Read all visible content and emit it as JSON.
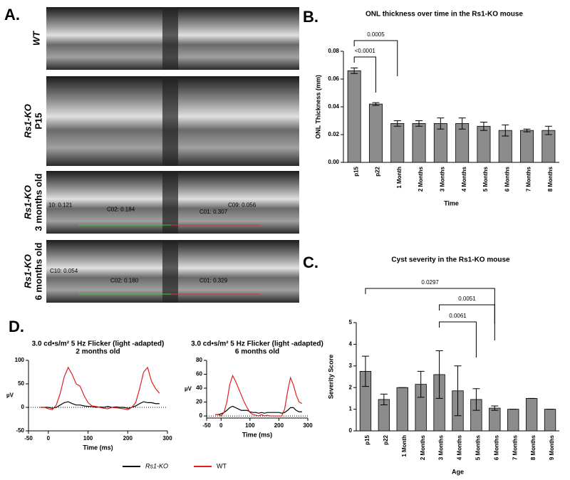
{
  "panel_a": {
    "panel": "A.",
    "rows": [
      {
        "label": "WT"
      },
      {
        "label": "Rs1-KO",
        "sublabel": "P15"
      },
      {
        "label": "Rs1-KO",
        "sublabel": "3 months old",
        "annotations": [
          "10: 0.121",
          "C02: 0.184",
          "C01: 0.307",
          "C09: 0.056"
        ]
      },
      {
        "label": "Rs1-KO",
        "sublabel": "6 months old",
        "annotations": [
          "C10: 0.054",
          "C02: 0.180",
          "C01: 0.329"
        ]
      }
    ]
  },
  "chart_data": [
    {
      "type": "bar",
      "panel": "B.",
      "title": "ONL thickness over time in the Rs1-KO mouse",
      "x_label": "Time",
      "y_label": "ONL Thickness (mm)",
      "categories": [
        "p15",
        "p22",
        "1 Month",
        "2 Months",
        "3 Months",
        "4 Months",
        "5 Months",
        "6 Months",
        "7 Months",
        "8 Months"
      ],
      "values": [
        0.066,
        0.042,
        0.028,
        0.028,
        0.028,
        0.028,
        0.026,
        0.023,
        0.023,
        0.023
      ],
      "errors": [
        0.002,
        0.001,
        0.002,
        0.002,
        0.004,
        0.004,
        0.003,
        0.004,
        0.001,
        0.003
      ],
      "color": "#8c8c8c",
      "ylim": [
        0,
        0.08
      ],
      "yticks": [
        {
          "value": 0,
          "label": "0.00"
        },
        {
          "value": 0.02,
          "label": "0.02"
        },
        {
          "value": 0.04,
          "label": "0.04"
        },
        {
          "value": 0.06,
          "label": "0.06"
        },
        {
          "value": 0.08,
          "label": "0.08"
        }
      ],
      "annotations": [
        "<0.0001",
        "0.0005"
      ]
    },
    {
      "type": "bar",
      "panel": "C.",
      "title": "Cyst severity in the Rs1-KO mouse",
      "x_label": "Age",
      "y_label": "Severity Score",
      "categories": [
        "p15",
        "p22",
        "1 Month",
        "2 Months",
        "3 Months",
        "4 Months",
        "5 Months",
        "6 Months",
        "7 Months",
        "8 Months",
        "9 Months"
      ],
      "values": [
        2.75,
        1.45,
        2.0,
        2.15,
        2.6,
        1.85,
        1.45,
        1.05,
        1.0,
        1.5,
        1.0
      ],
      "errors": [
        0.7,
        0.25,
        0,
        0.6,
        1.1,
        1.15,
        0.5,
        0.1,
        0,
        0,
        0
      ],
      "color": "#8c8c8c",
      "ylim": [
        0,
        5
      ],
      "yticks": [
        0,
        1,
        2,
        3,
        4,
        5
      ],
      "annotations": [
        "0.0297",
        "0.0051",
        "0.0061"
      ]
    },
    {
      "type": "line",
      "panel": "D.",
      "title": "3.0 cd•s/m² 5 Hz Flicker (light -adapted)",
      "subtitle": "2 months old",
      "x_label": "Time (ms)",
      "y_label": "µV",
      "x": [
        -20,
        -10,
        0,
        10,
        20,
        30,
        40,
        50,
        60,
        70,
        80,
        90,
        100,
        110,
        120,
        130,
        140,
        150,
        160,
        170,
        180,
        190,
        200,
        210,
        220,
        230,
        240,
        250,
        260,
        270,
        280
      ],
      "series": [
        {
          "name": "Rs1-KO",
          "color": "#000000",
          "values": [
            0,
            0,
            0,
            -2,
            0,
            5,
            10,
            12,
            8,
            5,
            5,
            3,
            2,
            2,
            0,
            1,
            0,
            2,
            0,
            1,
            0,
            0,
            -2,
            0,
            3,
            8,
            12,
            10,
            10,
            8,
            8
          ]
        },
        {
          "name": "WT",
          "color": "#e02020",
          "values": [
            0,
            0,
            -3,
            -5,
            5,
            30,
            65,
            85,
            70,
            50,
            45,
            25,
            10,
            3,
            2,
            0,
            -2,
            -3,
            0,
            -1,
            -2,
            -3,
            -5,
            0,
            10,
            40,
            75,
            85,
            55,
            40,
            30
          ]
        }
      ],
      "xlim": [
        -50,
        300
      ],
      "xticks": [
        -50,
        0,
        100,
        200,
        300
      ],
      "ylim": [
        -50,
        100
      ],
      "yticks": [
        -50,
        0,
        50,
        100
      ]
    },
    {
      "type": "line",
      "title": "3.0 cd•s/m² 5 Hz Flicker (light -adapted)",
      "subtitle": "6 months old",
      "x_label": "Time (ms)",
      "y_label": "µV",
      "x": [
        -20,
        -10,
        0,
        10,
        20,
        30,
        40,
        50,
        60,
        70,
        80,
        90,
        100,
        110,
        120,
        130,
        140,
        150,
        160,
        170,
        180,
        190,
        200,
        210,
        220,
        230,
        240,
        250,
        260,
        270,
        280
      ],
      "series": [
        {
          "color": "#000000",
          "values": [
            2,
            2,
            3,
            5,
            8,
            12,
            14,
            12,
            10,
            8,
            8,
            8,
            6,
            5,
            5,
            4,
            5,
            4,
            5,
            5,
            5,
            5,
            5,
            4,
            5,
            8,
            12,
            12,
            8,
            6,
            6
          ]
        },
        {
          "color": "#e02020",
          "values": [
            2,
            2,
            0,
            5,
            20,
            45,
            58,
            50,
            40,
            30,
            20,
            12,
            5,
            2,
            1,
            0,
            2,
            0,
            1,
            0,
            0,
            0,
            0,
            0,
            10,
            35,
            55,
            45,
            30,
            20,
            18
          ]
        }
      ],
      "xlim": [
        -50,
        300
      ],
      "xticks": [
        -50,
        0,
        100,
        200,
        300
      ],
      "ylim": [
        -3,
        80
      ],
      "yticks": [
        0,
        20,
        40,
        60,
        80
      ]
    }
  ]
}
